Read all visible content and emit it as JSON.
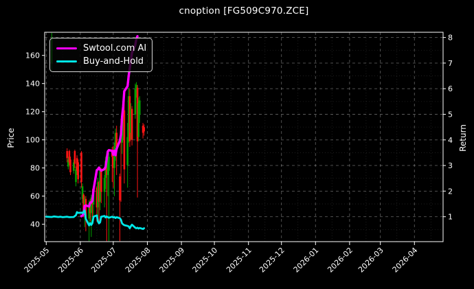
{
  "title": "cnoption [FG509C970.ZCE]",
  "axes": {
    "left_label": "Price",
    "right_label": "Return"
  },
  "legend": {
    "items": [
      {
        "label": "Swtool.com AI",
        "color": "#ff00ff"
      },
      {
        "label": "Buy-and-Hold",
        "color": "#00e8e8"
      }
    ]
  },
  "chart_data": {
    "type": "candlestick+line",
    "title": "cnoption [FG509C970.ZCE]",
    "xlabel": "",
    "ylabel_left": "Price",
    "ylabel_right": "Return",
    "grid": true,
    "legend_position": "upper left",
    "background": "#000000",
    "colors": {
      "up_candle": "#00a000",
      "down_candle": "#ff1414",
      "ai_line": "#ff00ff",
      "buyhold_line": "#00e8e8",
      "axis": "#ffffff",
      "grid_major": "rgba(255,255,255,0.35)",
      "grid_minor": "rgba(255,255,255,0.14)"
    },
    "price_ticks": [
      40,
      60,
      80,
      100,
      120,
      140,
      160
    ],
    "return_ticks": [
      1,
      2,
      3,
      4,
      5,
      6,
      7,
      8
    ],
    "x_tick_labels": [
      "2025-05",
      "2025-06",
      "2025-07",
      "2025-08",
      "2025-09",
      "2025-10",
      "2025-11",
      "2025-12",
      "2026-01",
      "2026-02",
      "2026-03",
      "2026-04"
    ],
    "price_axis_visible_range": [
      27.5,
      176.5
    ],
    "return_axis_visible_range": [
      0.03,
      8.2
    ],
    "candles_ohlc": [
      [
        "2025-05-06",
        155,
        176,
        149,
        172
      ],
      [
        "2025-05-20",
        92,
        94,
        84,
        87
      ],
      [
        "2025-05-21",
        81,
        88,
        79,
        86
      ],
      [
        "2025-05-22",
        92,
        93,
        82,
        84
      ],
      [
        "2025-05-23",
        86,
        88,
        75,
        77
      ],
      [
        "2025-05-26",
        78,
        86,
        76,
        84
      ],
      [
        "2025-05-27",
        92,
        93,
        80,
        83
      ],
      [
        "2025-05-28",
        70,
        81,
        67,
        79
      ],
      [
        "2025-05-29",
        87,
        89,
        75,
        78
      ],
      [
        "2025-05-30",
        84,
        86,
        69,
        72
      ],
      [
        "2025-06-02",
        91,
        92,
        66,
        70
      ],
      [
        "2025-06-03",
        58,
        69,
        55,
        67
      ],
      [
        "2025-06-04",
        61,
        62,
        45,
        49
      ],
      [
        "2025-06-05",
        49,
        60,
        38,
        58
      ],
      [
        "2025-06-06",
        58,
        60,
        35,
        44
      ],
      [
        "2025-06-09",
        44,
        57,
        28,
        55
      ],
      [
        "2025-06-10",
        55,
        58,
        42,
        48
      ],
      [
        "2025-06-11",
        48,
        61,
        31,
        59
      ],
      [
        "2025-06-12",
        59,
        65,
        45,
        54
      ],
      [
        "2025-06-13",
        54,
        68,
        44,
        66
      ],
      [
        "2025-06-16",
        66,
        67,
        42,
        52
      ],
      [
        "2025-06-17",
        52,
        73,
        45,
        70
      ],
      [
        "2025-06-18",
        70,
        71,
        40,
        56
      ],
      [
        "2025-06-19",
        56,
        81,
        50,
        78
      ],
      [
        "2025-06-20",
        78,
        80,
        55,
        63
      ],
      [
        "2025-06-23",
        63,
        75,
        52,
        73
      ],
      [
        "2025-06-24",
        73,
        88,
        65,
        85
      ],
      [
        "2025-06-25",
        85,
        90,
        28,
        75
      ],
      [
        "2025-06-26",
        75,
        92,
        60,
        88
      ],
      [
        "2025-06-27",
        78,
        91,
        28,
        88
      ],
      [
        "2025-06-30",
        92,
        95,
        70,
        88
      ],
      [
        "2025-07-01",
        88,
        96,
        66,
        80
      ],
      [
        "2025-07-02",
        80,
        98,
        60,
        95
      ],
      [
        "2025-07-03",
        95,
        108,
        85,
        105
      ],
      [
        "2025-07-04",
        105,
        110,
        75,
        95
      ],
      [
        "2025-07-07",
        74,
        76,
        28,
        57
      ],
      [
        "2025-07-08",
        110,
        115,
        56,
        98
      ],
      [
        "2025-07-09",
        98,
        112,
        90,
        108
      ],
      [
        "2025-07-10",
        108,
        126,
        100,
        122
      ],
      [
        "2025-07-11",
        121,
        131,
        69,
        79
      ],
      [
        "2025-07-14",
        82,
        112,
        66,
        102
      ],
      [
        "2025-07-15",
        102,
        137,
        98,
        131
      ],
      [
        "2025-07-16",
        131,
        136,
        95,
        99
      ],
      [
        "2025-07-17",
        105,
        126,
        100,
        122
      ],
      [
        "2025-07-18",
        122,
        124,
        96,
        100
      ],
      [
        "2025-07-21",
        118,
        140,
        115,
        136
      ],
      [
        "2025-07-22",
        136,
        141,
        130,
        139
      ],
      [
        "2025-07-23",
        137,
        139,
        59,
        99
      ],
      [
        "2025-07-24",
        102,
        130,
        99,
        126
      ],
      [
        "2025-07-25",
        118,
        131,
        112,
        128
      ],
      [
        "2025-07-28",
        110,
        112,
        101,
        105
      ],
      [
        "2025-07-29",
        109,
        111,
        103,
        106
      ]
    ],
    "series": [
      {
        "name": "Swtool.com AI",
        "axis": "return",
        "color": "#ff00ff",
        "points": [
          [
            "2025-06-02",
            1.02
          ],
          [
            "2025-06-03",
            1.05
          ],
          [
            "2025-06-04",
            1.1
          ],
          [
            "2025-06-05",
            1.42
          ],
          [
            "2025-06-06",
            1.44
          ],
          [
            "2025-06-09",
            1.4
          ],
          [
            "2025-06-10",
            1.55
          ],
          [
            "2025-06-11",
            1.56
          ],
          [
            "2025-06-12",
            1.62
          ],
          [
            "2025-06-13",
            2.05
          ],
          [
            "2025-06-16",
            2.82
          ],
          [
            "2025-06-17",
            2.85
          ],
          [
            "2025-06-18",
            2.92
          ],
          [
            "2025-06-19",
            2.84
          ],
          [
            "2025-06-20",
            2.8
          ],
          [
            "2025-06-23",
            2.86
          ],
          [
            "2025-06-24",
            2.95
          ],
          [
            "2025-06-25",
            3.25
          ],
          [
            "2025-06-26",
            3.55
          ],
          [
            "2025-06-27",
            3.6
          ],
          [
            "2025-06-30",
            3.57
          ],
          [
            "2025-07-01",
            3.42
          ],
          [
            "2025-07-02",
            3.58
          ],
          [
            "2025-07-03",
            3.4
          ],
          [
            "2025-07-04",
            3.65
          ],
          [
            "2025-07-07",
            3.97
          ],
          [
            "2025-07-08",
            4.2
          ],
          [
            "2025-07-09",
            4.9
          ],
          [
            "2025-07-10",
            5.3
          ],
          [
            "2025-07-11",
            5.9
          ],
          [
            "2025-07-14",
            6.1
          ],
          [
            "2025-07-15",
            6.5
          ],
          [
            "2025-07-16",
            6.8
          ],
          [
            "2025-07-17",
            7.1
          ],
          [
            "2025-07-18",
            7.4
          ],
          [
            "2025-07-21",
            7.7
          ],
          [
            "2025-07-22",
            7.95
          ],
          [
            "2025-07-23",
            8.05
          ]
        ]
      },
      {
        "name": "Buy-and-Hold",
        "axis": "return",
        "color": "#00e8e8",
        "points": [
          [
            "2025-05-01",
            1.0
          ],
          [
            "2025-05-06",
            0.99
          ],
          [
            "2025-05-08",
            1.01
          ],
          [
            "2025-05-12",
            0.99
          ],
          [
            "2025-05-14",
            1.0
          ],
          [
            "2025-05-16",
            0.98
          ],
          [
            "2025-05-20",
            1.0
          ],
          [
            "2025-05-22",
            0.98
          ],
          [
            "2025-05-26",
            0.99
          ],
          [
            "2025-05-28",
            1.06
          ],
          [
            "2025-05-29",
            1.18
          ],
          [
            "2025-05-30",
            1.15
          ],
          [
            "2025-06-02",
            1.16
          ],
          [
            "2025-06-03",
            1.14
          ],
          [
            "2025-06-04",
            1.2
          ],
          [
            "2025-06-05",
            1.24
          ],
          [
            "2025-06-06",
            0.92
          ],
          [
            "2025-06-09",
            0.66
          ],
          [
            "2025-06-10",
            0.75
          ],
          [
            "2025-06-11",
            0.68
          ],
          [
            "2025-06-12",
            0.75
          ],
          [
            "2025-06-13",
            1.0
          ],
          [
            "2025-06-16",
            1.05
          ],
          [
            "2025-06-17",
            0.82
          ],
          [
            "2025-06-18",
            0.74
          ],
          [
            "2025-06-19",
            0.78
          ],
          [
            "2025-06-20",
            1.0
          ],
          [
            "2025-06-23",
            1.03
          ],
          [
            "2025-06-24",
            0.97
          ],
          [
            "2025-06-25",
            1.01
          ],
          [
            "2025-06-26",
            0.98
          ],
          [
            "2025-06-27",
            0.96
          ],
          [
            "2025-06-30",
            1.0
          ],
          [
            "2025-07-01",
            0.97
          ],
          [
            "2025-07-02",
            0.99
          ],
          [
            "2025-07-03",
            0.95
          ],
          [
            "2025-07-04",
            0.98
          ],
          [
            "2025-07-07",
            0.94
          ],
          [
            "2025-07-08",
            0.88
          ],
          [
            "2025-07-09",
            0.74
          ],
          [
            "2025-07-10",
            0.7
          ],
          [
            "2025-07-11",
            0.67
          ],
          [
            "2025-07-14",
            0.64
          ],
          [
            "2025-07-15",
            0.62
          ],
          [
            "2025-07-16",
            0.55
          ],
          [
            "2025-07-17",
            0.63
          ],
          [
            "2025-07-18",
            0.69
          ],
          [
            "2025-07-21",
            0.57
          ],
          [
            "2025-07-22",
            0.55
          ],
          [
            "2025-07-23",
            0.57
          ],
          [
            "2025-07-24",
            0.54
          ],
          [
            "2025-07-25",
            0.56
          ],
          [
            "2025-07-28",
            0.52
          ],
          [
            "2025-07-29",
            0.55
          ]
        ]
      }
    ]
  }
}
